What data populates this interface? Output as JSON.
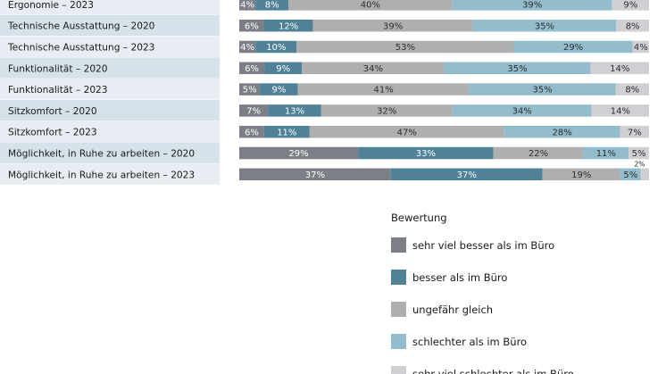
{
  "chart_data": {
    "type": "bar",
    "orientation": "horizontal",
    "stacked": true,
    "unit": "%",
    "categories": [
      "Ergonomie – 2023",
      "Technische Ausstattung – 2020",
      "Technische Ausstattung – 2023",
      "Funktionalität – 2020",
      "Funktionalität – 2023",
      "Sitzkomfort – 2020",
      "Sitzkomfort – 2023",
      "Möglichkeit, in Ruhe zu arbeiten – 2020",
      "Möglichkeit, in Ruhe zu arbeiten – 2023"
    ],
    "series": [
      {
        "name": "sehr viel besser als im Büro",
        "color": "#7c7f85",
        "values": [
          4,
          6,
          4,
          6,
          5,
          7,
          6,
          29,
          37
        ]
      },
      {
        "name": "besser als im Büro",
        "color": "#4f8198",
        "values": [
          8,
          12,
          10,
          9,
          9,
          13,
          11,
          33,
          37
        ]
      },
      {
        "name": "ungefähr gleich",
        "color": "#afafb2",
        "values": [
          40,
          39,
          53,
          34,
          41,
          32,
          47,
          22,
          19
        ]
      },
      {
        "name": "schlechter als im Büro",
        "color": "#93bccc",
        "values": [
          39,
          35,
          29,
          35,
          35,
          34,
          28,
          11,
          5
        ]
      },
      {
        "name": "sehr viel schlechter als im Büro",
        "color": "#cfd0d3",
        "values": [
          9,
          8,
          4,
          14,
          8,
          14,
          7,
          5,
          2
        ]
      }
    ],
    "legend_title": "Bewertung",
    "legend_position": "bottom-right",
    "label_suffix": "%",
    "row_backgrounds": [
      "#e7edf2",
      "#d6e2ea"
    ]
  }
}
